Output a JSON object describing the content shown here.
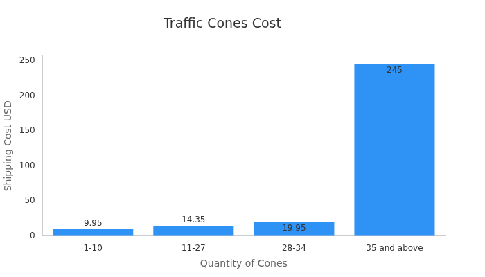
{
  "chart_data": {
    "type": "bar",
    "title": "Traffic Cones Cost",
    "x_label": "Quantity of Cones",
    "y_label": "Shipping Cost USD",
    "categories": [
      "1-10",
      "11-27",
      "28-34",
      "35 and above"
    ],
    "values": [
      9.95,
      14.35,
      19.95,
      245
    ],
    "color": "#2f92f5",
    "ylim": [
      0,
      257
    ],
    "yticks": [
      0,
      50,
      100,
      150,
      200,
      250
    ],
    "grid": false,
    "data_labels": true
  }
}
